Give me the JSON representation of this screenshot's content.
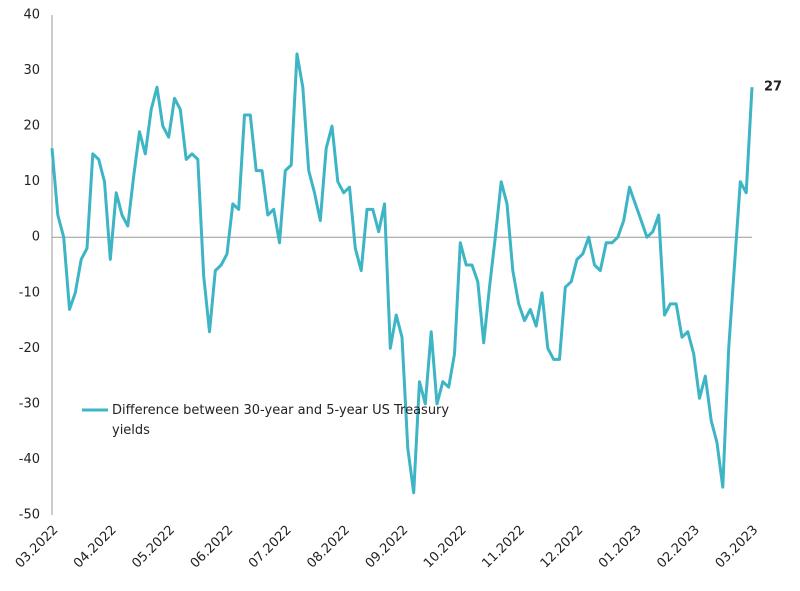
{
  "chart_data": {
    "type": "line",
    "categories": [
      "03.2022",
      null,
      null,
      null,
      null,
      null,
      null,
      null,
      null,
      null,
      "04.2022",
      null,
      null,
      null,
      null,
      null,
      null,
      null,
      null,
      null,
      "05.2022",
      null,
      null,
      null,
      null,
      null,
      null,
      null,
      null,
      null,
      "06.2022",
      null,
      null,
      null,
      null,
      null,
      null,
      null,
      null,
      null,
      "07.2022",
      null,
      null,
      null,
      null,
      null,
      null,
      null,
      null,
      null,
      "08.2022",
      null,
      null,
      null,
      null,
      null,
      null,
      null,
      null,
      null,
      "09.2022",
      null,
      null,
      null,
      null,
      null,
      null,
      null,
      null,
      null,
      "10.2022",
      null,
      null,
      null,
      null,
      null,
      null,
      null,
      null,
      null,
      "11.2022",
      null,
      null,
      null,
      null,
      null,
      null,
      null,
      null,
      null,
      "12.2022",
      null,
      null,
      null,
      null,
      null,
      null,
      null,
      null,
      null,
      "01.2023",
      null,
      null,
      null,
      null,
      null,
      null,
      null,
      null,
      null,
      "02.2023",
      null,
      null,
      null,
      null,
      null,
      null,
      null,
      null,
      null,
      "03.2023"
    ],
    "series": [
      {
        "name": "Difference between 30-year and 5-year US Treasury yields",
        "color": "#3db5c5",
        "values": [
          16,
          4,
          0,
          -13,
          -10,
          -4,
          -2,
          15,
          14,
          10,
          -4,
          8,
          4,
          2,
          11,
          19,
          15,
          23,
          27,
          20,
          18,
          25,
          23,
          14,
          15,
          14,
          -7,
          -17,
          -6,
          -5,
          -3,
          6,
          5,
          22,
          22,
          12,
          12,
          4,
          5,
          -1,
          12,
          13,
          33,
          27,
          12,
          8,
          3,
          16,
          20,
          10,
          8,
          9,
          -2,
          -6,
          5,
          5,
          1,
          6,
          -20,
          -14,
          -18,
          -38,
          -46,
          -26,
          -30,
          -17,
          -30,
          -26,
          -27,
          -21,
          -1,
          -5,
          -5,
          -8,
          -19,
          -9,
          0,
          10,
          6,
          -6,
          -12,
          -15,
          -13,
          -16,
          -10,
          -20,
          -22,
          -22,
          -9,
          -8,
          -4,
          -3,
          0,
          -5,
          -6,
          -1,
          -1,
          0,
          3,
          9,
          6,
          3,
          0,
          1,
          4,
          -14,
          -12,
          -12,
          -18,
          -17,
          -21,
          -29,
          -25,
          -33,
          -37,
          -45,
          -20,
          -5,
          10,
          8,
          27
        ]
      }
    ],
    "ylim": [
      -50,
      40
    ],
    "yticks": [
      -50,
      -40,
      -30,
      -20,
      -10,
      0,
      10,
      20,
      30,
      40
    ]
  }
}
